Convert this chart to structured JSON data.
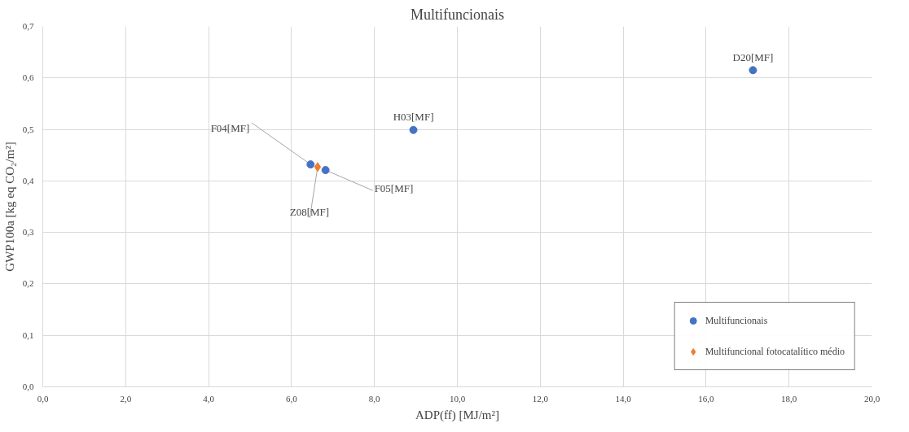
{
  "chart_data": {
    "type": "scatter",
    "title": "Multifuncionais",
    "xlabel": "ADP(ff) [MJ/m²]",
    "ylabel": "GWP100a [kg eq CO₂/m²]",
    "xlim": [
      0,
      20
    ],
    "ylim": [
      0,
      0.7
    ],
    "xticks": [
      {
        "value": 0,
        "label": "0,0"
      },
      {
        "value": 2,
        "label": "2,0"
      },
      {
        "value": 4,
        "label": "4,0"
      },
      {
        "value": 6,
        "label": "6,0"
      },
      {
        "value": 8,
        "label": "8,0"
      },
      {
        "value": 10,
        "label": "10,0"
      },
      {
        "value": 12,
        "label": "12,0"
      },
      {
        "value": 14,
        "label": "14,0"
      },
      {
        "value": 16,
        "label": "16,0"
      },
      {
        "value": 18,
        "label": "18,0"
      },
      {
        "value": 20,
        "label": "20,0"
      }
    ],
    "yticks": [
      {
        "value": 0,
        "label": "0,0"
      },
      {
        "value": 0.1,
        "label": "0,1"
      },
      {
        "value": 0.2,
        "label": "0,2"
      },
      {
        "value": 0.3,
        "label": "0,3"
      },
      {
        "value": 0.4,
        "label": "0,4"
      },
      {
        "value": 0.5,
        "label": "0,5"
      },
      {
        "value": 0.6,
        "label": "0,6"
      },
      {
        "value": 0.7,
        "label": "0,7"
      }
    ],
    "series": [
      {
        "name": "Multifuncionais",
        "color": "#4472c4",
        "marker": "circle",
        "x": [
          6.46,
          6.82,
          8.94,
          17.13
        ],
        "values": [
          0.432,
          0.421,
          0.499,
          0.615
        ]
      },
      {
        "name": "Multifuncional fotocatalítico médio",
        "color": "#ed7d31",
        "marker": "diamond",
        "x": [
          6.63
        ],
        "values": [
          0.427
        ]
      }
    ],
    "annotations": [
      {
        "text": "F04[MF]",
        "x": 6.46,
        "y": 0.432
      },
      {
        "text": "F05[MF]",
        "x": 6.82,
        "y": 0.421
      },
      {
        "text": "Z08[MF]",
        "x": 6.63,
        "y": 0.427
      },
      {
        "text": "H03[MF]",
        "x": 8.94,
        "y": 0.499
      },
      {
        "text": "D20[MF]",
        "x": 17.13,
        "y": 0.615
      }
    ],
    "grid": true,
    "legend": "bottom right"
  }
}
